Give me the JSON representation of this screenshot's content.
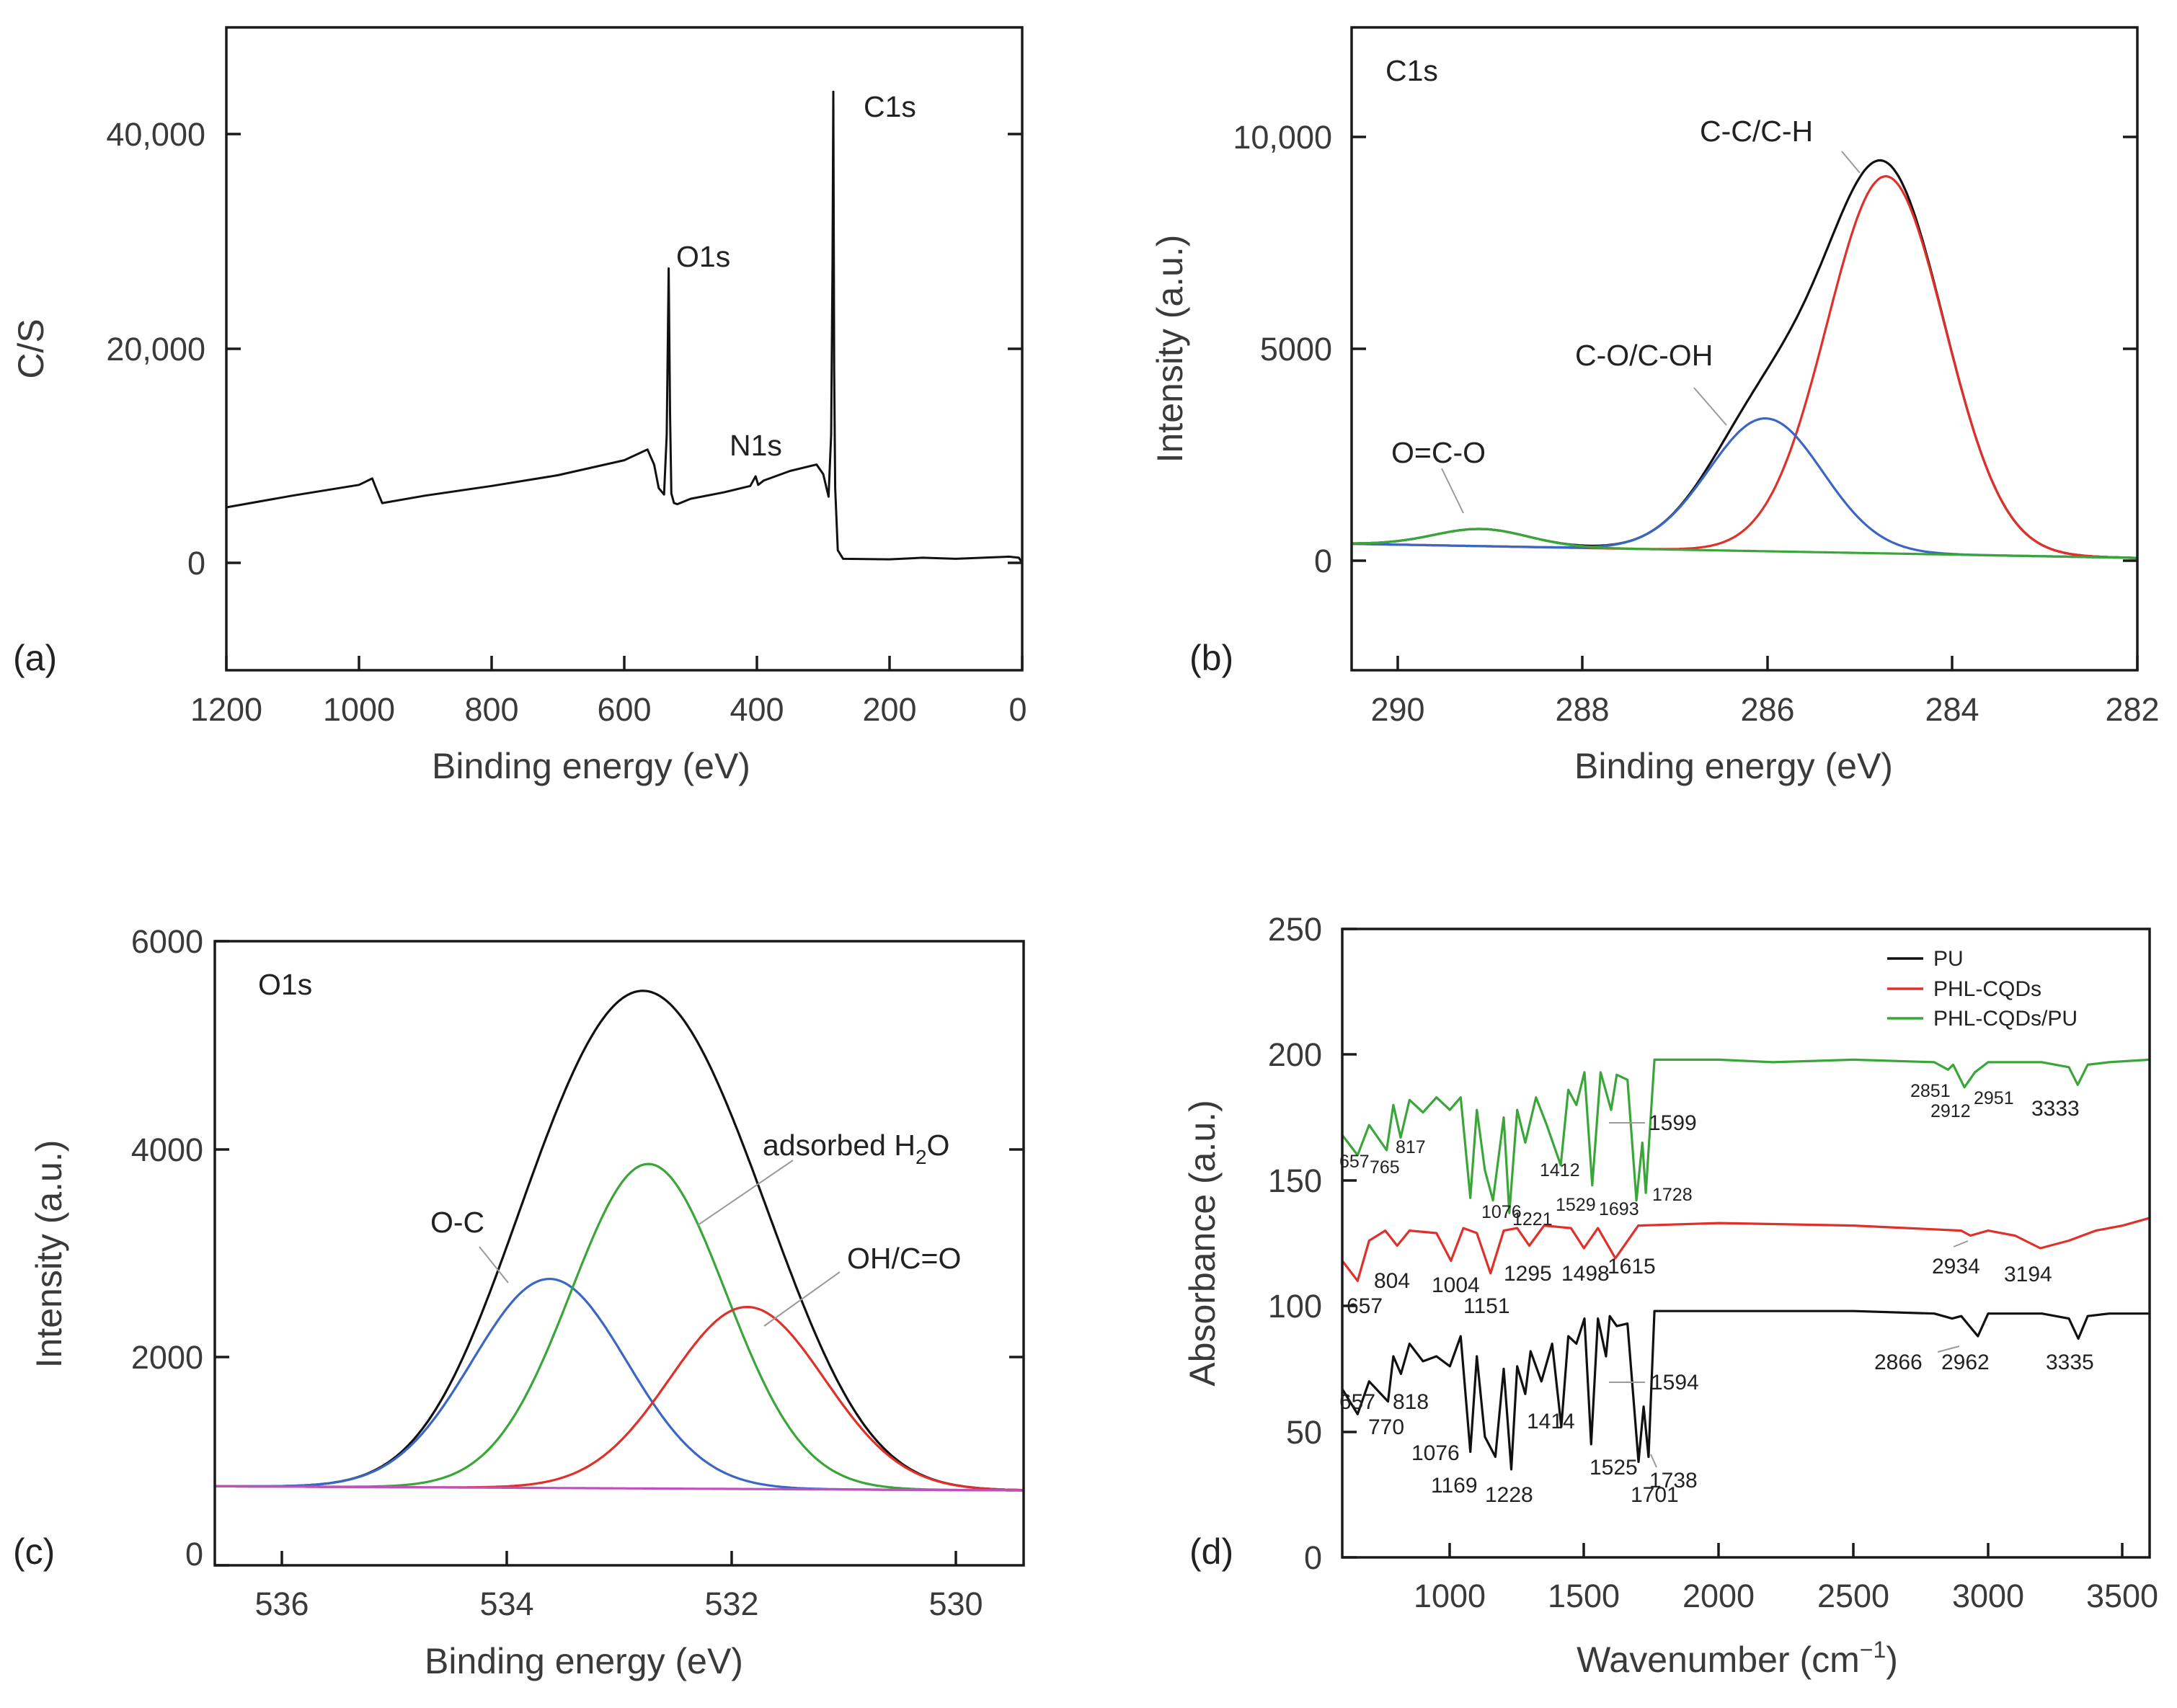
{
  "chart_data": [
    {
      "id": "a",
      "type": "line",
      "panel_label": "(a)",
      "xlabel": "Binding energy (eV)",
      "ylabel": "C/S",
      "xlim": [
        1200,
        0
      ],
      "ylim": [
        -10000,
        50000
      ],
      "xticks": [
        1200,
        1000,
        800,
        600,
        400,
        200,
        0
      ],
      "xtick_labels": [
        "1200",
        "1000",
        "800",
        "600",
        "400",
        "200",
        "0"
      ],
      "yticks": [
        0,
        20000,
        40000
      ],
      "ytick_labels": [
        "0",
        "20,000",
        "40,000"
      ],
      "series": [
        {
          "name": "survey",
          "color": "#111111",
          "x": [
            1200,
            1100,
            1000,
            980,
            975,
            965,
            900,
            800,
            700,
            600,
            565,
            555,
            548,
            540,
            536,
            533,
            531,
            529,
            525,
            520,
            500,
            450,
            410,
            402,
            398,
            390,
            350,
            310,
            300,
            292,
            288,
            286,
            284.8,
            283.5,
            282,
            278,
            270,
            200,
            150,
            100,
            20,
            5,
            0
          ],
          "y": [
            5200,
            6300,
            7300,
            7900,
            7100,
            5600,
            6300,
            7200,
            8200,
            9600,
            10600,
            9200,
            7000,
            6400,
            12000,
            27500,
            14000,
            6500,
            5600,
            5500,
            6000,
            6600,
            7200,
            8100,
            7300,
            7700,
            8600,
            9200,
            8300,
            6200,
            12000,
            28000,
            44000,
            18000,
            7000,
            1200,
            400,
            350,
            500,
            400,
            600,
            500,
            0
          ]
        }
      ],
      "annotations": [
        "C1s",
        "O1s",
        "N1s"
      ]
    },
    {
      "id": "b",
      "type": "line",
      "panel_label": "(b)",
      "title": "C1s",
      "xlabel": "Binding energy (eV)",
      "ylabel": "Intensity (a.u.)",
      "xlim": [
        290.5,
        282
      ],
      "ylim": [
        -2500,
        12500
      ],
      "xticks": [
        290,
        288,
        286,
        284,
        282
      ],
      "xtick_labels": [
        "290",
        "288",
        "286",
        "284",
        "282"
      ],
      "yticks": [
        0,
        5000,
        10000
      ],
      "ytick_labels": [
        "0",
        "5000",
        "10,000"
      ],
      "background": {
        "start": 450,
        "end": 120
      },
      "series": [
        {
          "name": "Envelope",
          "color": "#111111",
          "kind": "envelope"
        },
        {
          "name": "C-C/C-H",
          "color": "#e0302a",
          "center": 284.72,
          "amplitude": 8800,
          "fwhm": 1.5
        },
        {
          "name": "C-O/C-OH",
          "color": "#3a66c4",
          "center": 286.02,
          "amplitude": 3100,
          "fwhm": 1.45
        },
        {
          "name": "O=C-O",
          "color": "#3aa63a",
          "center": 289.1,
          "amplitude": 400,
          "fwhm": 1.2
        }
      ],
      "annotations": [
        "C-C/C-H",
        "C-O/C-OH",
        "O=C-O"
      ]
    },
    {
      "id": "c",
      "type": "line",
      "panel_label": "(c)",
      "title": "O1s",
      "xlabel": "Binding energy (eV)",
      "ylabel": "Intensity (a.u.)",
      "xlim": [
        536.6,
        529.4
      ],
      "ylim": [
        0,
        6000
      ],
      "xticks": [
        536,
        534,
        532,
        530
      ],
      "xtick_labels": [
        "536",
        "534",
        "532",
        "530"
      ],
      "yticks": [
        0,
        2000,
        4000,
        6000
      ],
      "ytick_labels": [
        "0",
        "2000",
        "4000",
        "6000"
      ],
      "background": {
        "start": 760,
        "end": 720
      },
      "series": [
        {
          "name": "Envelope",
          "color": "#111111",
          "kind": "envelope"
        },
        {
          "name": "O-C",
          "color": "#3a66c4",
          "center": 533.62,
          "amplitude": 2010,
          "fwhm": 1.62
        },
        {
          "name": "adsorbed H2O",
          "color": "#3aa63a",
          "center": 532.74,
          "amplitude": 3120,
          "fwhm": 1.62
        },
        {
          "name": "OH/C=O",
          "color": "#e0302a",
          "center": 531.86,
          "amplitude": 1750,
          "fwhm": 1.62
        },
        {
          "name": "Baseline",
          "color": "#c050c0",
          "kind": "baseline"
        }
      ],
      "annotations": [
        "O-C",
        "adsorbed H",
        "2",
        "O",
        "OH/C=O"
      ]
    },
    {
      "id": "d",
      "type": "line",
      "panel_label": "(d)",
      "xlabel": "Wavenumber (cm",
      "xlabel_sup": "−1",
      "xlabel_end": ")",
      "ylabel": "Absorbance (a.u.)",
      "xlim": [
        600,
        3600
      ],
      "ylim": [
        0,
        250
      ],
      "xticks": [
        1000,
        1500,
        2000,
        2500,
        3000,
        3500
      ],
      "xtick_labels": [
        "1000",
        "1500",
        "2000",
        "2500",
        "3000",
        "3500"
      ],
      "yticks": [
        0,
        50,
        100,
        150,
        200,
        250
      ],
      "ytick_labels": [
        "0",
        "50",
        "100",
        "150",
        "200",
        "250"
      ],
      "legend": [
        "PU",
        "PHL-CQDs",
        "PHL-CQDs/PU"
      ],
      "legend_position": "top-right",
      "series": [
        {
          "name": "PU",
          "color": "#111111",
          "x": [
            600,
            657,
            700,
            770,
            790,
            818,
            850,
            900,
            950,
            1000,
            1040,
            1076,
            1100,
            1130,
            1169,
            1200,
            1228,
            1250,
            1280,
            1300,
            1340,
            1380,
            1414,
            1440,
            1470,
            1500,
            1525,
            1550,
            1580,
            1594,
            1620,
            1660,
            1701,
            1720,
            1738,
            1760,
            1800,
            2000,
            2200,
            2500,
            2800,
            2866,
            2900,
            2962,
            3000,
            3200,
            3300,
            3335,
            3370,
            3450,
            3600
          ],
          "y": [
            67,
            57,
            70,
            62,
            80,
            73,
            85,
            78,
            80,
            76,
            88,
            42,
            80,
            48,
            40,
            75,
            35,
            76,
            65,
            82,
            70,
            85,
            52,
            88,
            85,
            95,
            45,
            95,
            80,
            96,
            92,
            93,
            38,
            60,
            40,
            98,
            98,
            98,
            98,
            98,
            97,
            95,
            96,
            88,
            97,
            97,
            95,
            87,
            96,
            97,
            97
          ]
        },
        {
          "name": "PHL-CQDs",
          "color": "#e0302a",
          "x": [
            600,
            657,
            700,
            760,
            804,
            850,
            950,
            1004,
            1050,
            1100,
            1151,
            1200,
            1250,
            1295,
            1350,
            1450,
            1498,
            1550,
            1615,
            1700,
            2000,
            2500,
            2900,
            2934,
            3000,
            3100,
            3194,
            3300,
            3400,
            3500,
            3600
          ],
          "y": [
            118,
            110,
            126,
            130,
            124,
            130,
            129,
            118,
            131,
            129,
            113,
            130,
            131,
            124,
            132,
            131,
            123,
            131,
            119,
            132,
            133,
            132,
            130,
            128,
            130,
            128,
            123,
            126,
            130,
            132,
            135
          ]
        },
        {
          "name": "PHL-CQDs/PU",
          "color": "#3aa63a",
          "x": [
            600,
            657,
            700,
            765,
            790,
            817,
            850,
            900,
            950,
            1000,
            1040,
            1076,
            1100,
            1130,
            1160,
            1200,
            1221,
            1250,
            1280,
            1320,
            1360,
            1412,
            1440,
            1470,
            1500,
            1529,
            1560,
            1599,
            1620,
            1660,
            1693,
            1715,
            1728,
            1760,
            1800,
            2000,
            2200,
            2500,
            2800,
            2851,
            2870,
            2912,
            2951,
            3000,
            3200,
            3300,
            3333,
            3370,
            3450,
            3600
          ],
          "y": [
            168,
            160,
            172,
            162,
            180,
            167,
            182,
            177,
            183,
            178,
            183,
            143,
            178,
            154,
            142,
            175,
            137,
            178,
            165,
            183,
            172,
            156,
            186,
            180,
            193,
            148,
            193,
            178,
            192,
            190,
            142,
            165,
            145,
            198,
            198,
            198,
            197,
            198,
            197,
            194,
            196,
            187,
            193,
            197,
            197,
            195,
            188,
            196,
            197,
            198
          ]
        }
      ],
      "peak_labels": {
        "PU": [
          "657",
          "770",
          "818",
          "1076",
          "1169",
          "1228",
          "1414",
          "1525",
          "1594",
          "1701",
          "1738",
          "2866",
          "2962",
          "3335"
        ],
        "PHL-CQDs": [
          "657",
          "804",
          "1004",
          "1151",
          "1295",
          "1498",
          "1615",
          "2934",
          "3194"
        ],
        "PHL-CQDs/PU": [
          "657",
          "765",
          "817",
          "1076",
          "1221",
          "1412",
          "1529",
          "1693",
          "1728",
          "1599",
          "2851",
          "2912",
          "2951",
          "3333"
        ]
      }
    }
  ]
}
